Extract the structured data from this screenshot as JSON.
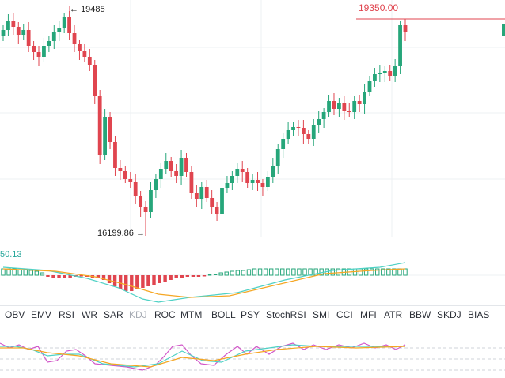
{
  "price_chart": {
    "high_label": "19485",
    "low_label": "16199.86",
    "current_price": "19350.00",
    "colors": {
      "up": "#26a67a",
      "down": "#e0454f",
      "grid": "#eef0f3",
      "price_line": "#e0454f"
    }
  },
  "macd": {
    "value_label": "50.13"
  },
  "indicator_tabs": [
    {
      "label": "OBV"
    },
    {
      "label": "EMV"
    },
    {
      "label": "RSI"
    },
    {
      "label": "WR"
    },
    {
      "label": "SAR"
    },
    {
      "label": "KDJ",
      "active": true
    },
    {
      "label": "ROC"
    },
    {
      "label": "MTM"
    },
    {
      "label": "BOLL"
    },
    {
      "label": "PSY"
    },
    {
      "label": "StochRSI"
    },
    {
      "label": "SMI"
    },
    {
      "label": "CCI"
    },
    {
      "label": "MFI"
    },
    {
      "label": "ATR"
    },
    {
      "label": "BBW"
    },
    {
      "label": "SKDJ"
    },
    {
      "label": "BIAS"
    }
  ]
}
